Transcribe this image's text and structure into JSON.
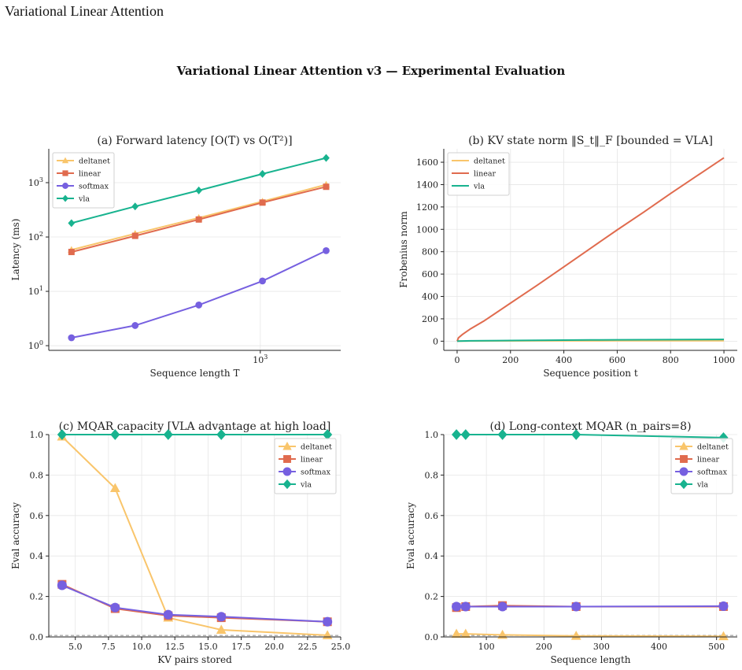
{
  "page": {
    "title": "Variational Linear Attention",
    "suptitle": "Variational Linear Attention v3 — Experimental Evaluation"
  },
  "colors": {
    "deltanet": "#f9c56b",
    "linear": "#e06b4e",
    "softmax": "#7660e0",
    "vla": "#18b38f"
  },
  "chart_data": [
    {
      "id": "a",
      "type": "line",
      "title": "(a) Forward latency  [O(T) vs O(T²)]",
      "xlabel": "Sequence length T",
      "ylabel": "Latency (ms)",
      "xscale": "log",
      "yscale": "log",
      "xlim": [
        100,
        2400
      ],
      "ylim": [
        0.82,
        4200
      ],
      "grid": true,
      "legend": "top-left",
      "xticks": [
        {
          "v": 1000,
          "label": "10",
          "sup": "3"
        }
      ],
      "yticks": [
        {
          "v": 1,
          "label": "10",
          "sup": "0"
        },
        {
          "v": 10,
          "label": "10",
          "sup": "1"
        },
        {
          "v": 100,
          "label": "10",
          "sup": "2"
        },
        {
          "v": 1000,
          "label": "10",
          "sup": "3"
        }
      ],
      "x": [
        128,
        256,
        512,
        1024,
        2048
      ],
      "series": [
        {
          "name": "deltanet",
          "marker": "triangle",
          "values": [
            58,
            115,
            225,
            450,
            920
          ]
        },
        {
          "name": "linear",
          "marker": "square",
          "values": [
            53,
            105,
            210,
            430,
            840
          ]
        },
        {
          "name": "softmax",
          "marker": "circle",
          "values": [
            1.4,
            2.35,
            5.6,
            15.5,
            56
          ]
        },
        {
          "name": "vla",
          "marker": "diamond",
          "values": [
            180,
            365,
            720,
            1450,
            2850
          ]
        }
      ]
    },
    {
      "id": "b",
      "type": "line",
      "title": "(b) KV state norm  ‖S_t‖_F  [bounded = VLA]",
      "xlabel": "Sequence position t",
      "ylabel": "Frobenius norm",
      "xlim": [
        -50,
        1050
      ],
      "ylim": [
        -82,
        1720
      ],
      "grid": true,
      "legend": "top-left",
      "xticks": [
        0,
        200,
        400,
        600,
        800,
        1000
      ],
      "yticks": [
        0,
        200,
        400,
        600,
        800,
        1000,
        1200,
        1400,
        1600
      ],
      "x": [
        0,
        5,
        20,
        50,
        100,
        200,
        300,
        400,
        500,
        600,
        700,
        800,
        900,
        1000
      ],
      "series": [
        {
          "name": "deltanet",
          "marker": "none",
          "values": [
            0,
            0.5,
            1,
            1.5,
            2,
            2.5,
            3,
            3.2,
            3.4,
            3.6,
            3.8,
            4,
            4.2,
            4.4
          ]
        },
        {
          "name": "linear",
          "marker": "none",
          "values": [
            0,
            30,
            60,
            110,
            180,
            340,
            500,
            665,
            830,
            995,
            1155,
            1320,
            1480,
            1640
          ]
        },
        {
          "name": "vla",
          "marker": "none",
          "values": [
            0,
            1,
            2,
            3,
            4,
            6,
            8,
            9.5,
            11,
            12,
            13,
            14,
            15,
            16
          ]
        }
      ]
    },
    {
      "id": "c",
      "type": "line",
      "title": "(c) MQAR capacity  [VLA advantage at high load]",
      "xlabel": "KV pairs stored",
      "ylabel": "Eval accuracy",
      "xlim": [
        3,
        25
      ],
      "ylim": [
        0,
        1
      ],
      "grid": true,
      "legend": "top-right",
      "baseline": 0.0075,
      "xticks": [
        5,
        7.5,
        10,
        12.5,
        15,
        17.5,
        20,
        22.5,
        25
      ],
      "xtick_labels": [
        "5.0",
        "7.5",
        "10.0",
        "12.5",
        "15.0",
        "17.5",
        "20.0",
        "22.5",
        "25.0"
      ],
      "yticks": [
        0,
        0.2,
        0.4,
        0.6,
        0.8,
        1.0
      ],
      "ytick_labels": [
        "0.0",
        "0.2",
        "0.4",
        "0.6",
        "0.8",
        "1.0"
      ],
      "x": [
        4,
        8,
        12,
        16,
        24
      ],
      "series": [
        {
          "name": "deltanet",
          "marker": "triangle",
          "values": [
            0.99,
            0.735,
            0.095,
            0.035,
            0.008
          ]
        },
        {
          "name": "linear",
          "marker": "square",
          "values": [
            0.26,
            0.14,
            0.105,
            0.095,
            0.075
          ]
        },
        {
          "name": "softmax",
          "marker": "circle",
          "values": [
            0.255,
            0.145,
            0.11,
            0.1,
            0.075
          ]
        },
        {
          "name": "vla",
          "marker": "diamond",
          "values": [
            1.0,
            1.0,
            1.0,
            1.0,
            1.0
          ]
        }
      ]
    },
    {
      "id": "d",
      "type": "line",
      "title": "(d) Long-context MQAR  (n_pairs=8)",
      "xlabel": "Sequence length",
      "ylabel": "Eval accuracy",
      "xlim": [
        26,
        536
      ],
      "ylim": [
        0,
        1
      ],
      "grid": true,
      "legend": "top-right",
      "baseline": 0.0075,
      "xticks": [
        100,
        200,
        300,
        400,
        500
      ],
      "yticks": [
        0,
        0.2,
        0.4,
        0.6,
        0.8,
        1.0
      ],
      "ytick_labels": [
        "0.0",
        "0.2",
        "0.4",
        "0.6",
        "0.8",
        "1.0"
      ],
      "x": [
        48,
        64,
        128,
        256,
        512
      ],
      "series": [
        {
          "name": "deltanet",
          "marker": "triangle",
          "values": [
            0.015,
            0.015,
            0.01,
            0.005,
            0.003
          ]
        },
        {
          "name": "linear",
          "marker": "square",
          "values": [
            0.145,
            0.15,
            0.155,
            0.15,
            0.15
          ]
        },
        {
          "name": "softmax",
          "marker": "circle",
          "values": [
            0.15,
            0.15,
            0.15,
            0.15,
            0.152
          ]
        },
        {
          "name": "vla",
          "marker": "diamond",
          "values": [
            1.0,
            1.0,
            1.0,
            1.0,
            0.985
          ]
        }
      ]
    }
  ]
}
